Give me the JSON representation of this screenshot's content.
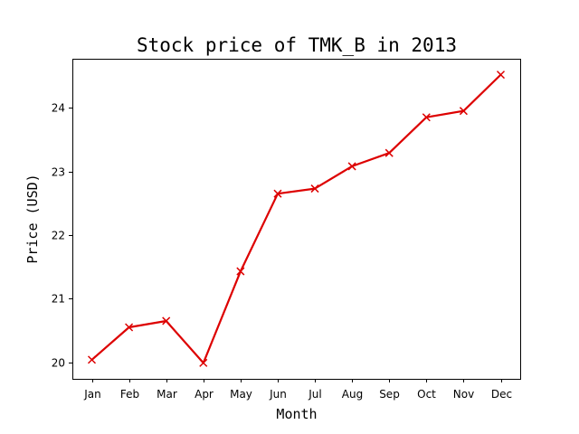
{
  "chart_data": {
    "type": "line",
    "title": "Stock price of TMK_B in 2013",
    "xlabel": "Month",
    "ylabel": "Price (USD)",
    "categories": [
      "Jan",
      "Feb",
      "Mar",
      "Apr",
      "May",
      "Jun",
      "Jul",
      "Aug",
      "Sep",
      "Oct",
      "Nov",
      "Dec"
    ],
    "series": [
      {
        "values": [
          20.04,
          20.55,
          20.65,
          19.99,
          21.43,
          22.65,
          22.73,
          23.08,
          23.29,
          23.85,
          23.95,
          24.52
        ],
        "color": "#dd0000",
        "marker": "x"
      }
    ],
    "yticks": [
      20,
      21,
      22,
      23,
      24
    ],
    "ylim": [
      19.74,
      24.77
    ],
    "grid": false,
    "legend": false
  }
}
